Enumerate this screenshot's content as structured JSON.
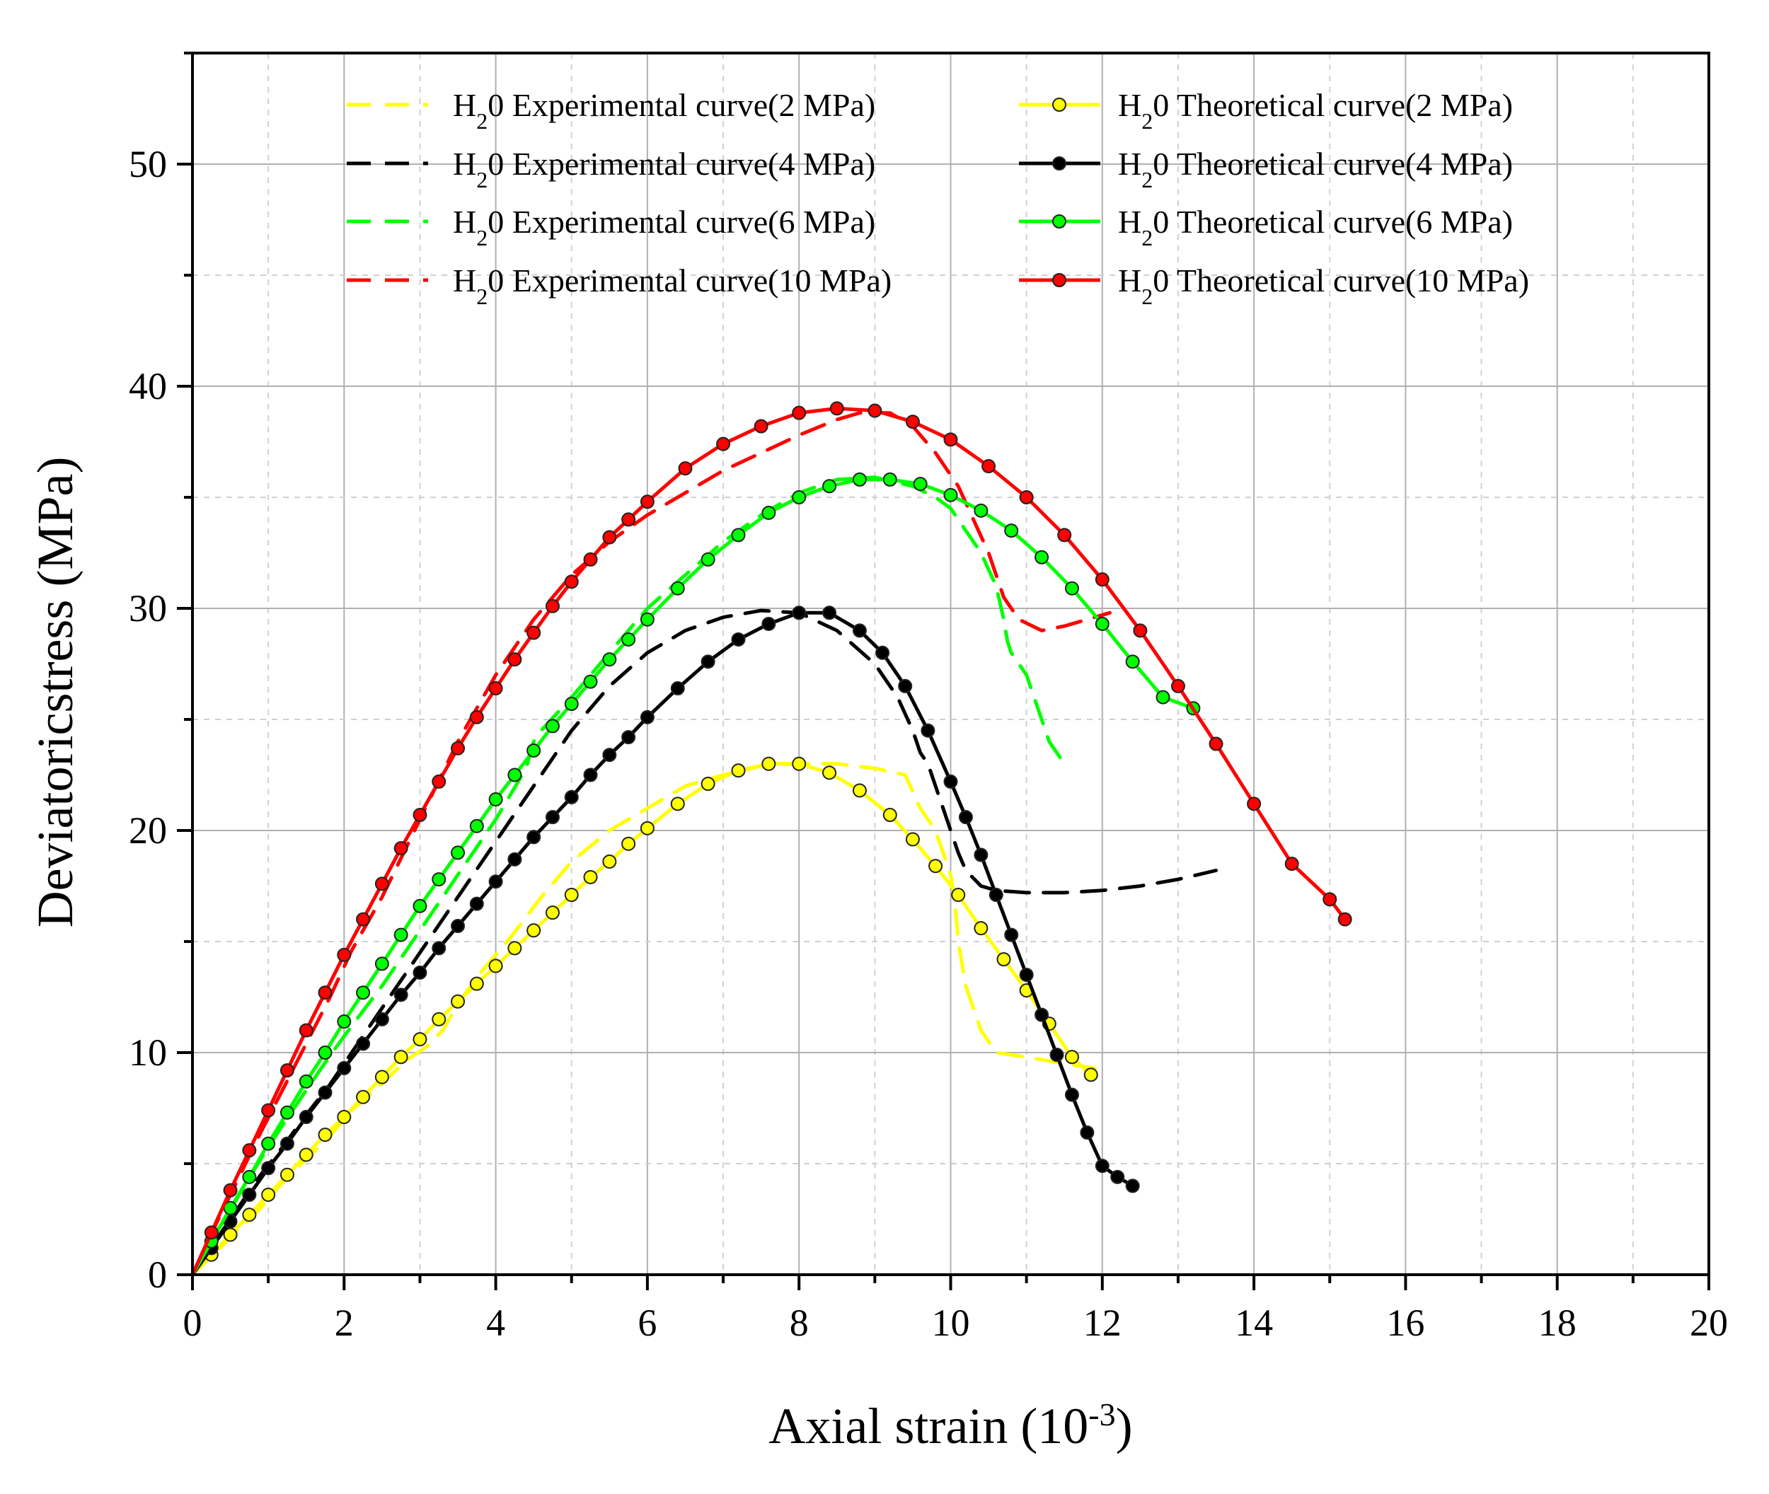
{
  "chart_data": {
    "type": "line",
    "title": "",
    "xlabel": "Axial strain (10",
    "xlabel_sup": "-3",
    "xlabel_end": ")",
    "ylabel": "Deviatoricstress (MPa)",
    "xlim": [
      0,
      20
    ],
    "ylim": [
      0,
      55
    ],
    "xticks": [
      0,
      2,
      4,
      6,
      8,
      10,
      12,
      14,
      16,
      18,
      20
    ],
    "yticks": [
      0,
      10,
      20,
      30,
      40,
      50
    ],
    "grid": true,
    "legend_position": "top",
    "series": [
      {
        "name": "H",
        "name_sub": "2",
        "name_rest": "0 Experimental curve(2 MPa)",
        "color": "#ffff00",
        "style": "dashed",
        "x": [
          0,
          0.3,
          0.6,
          0.9,
          1.2,
          1.5,
          1.8,
          2.1,
          2.5,
          2.8,
          3.1,
          3.3,
          3.5,
          3.8,
          4.2,
          4.6,
          5.0,
          5.5,
          6.0,
          6.5,
          7.0,
          7.5,
          8.0,
          8.5,
          9.0,
          9.4,
          9.6,
          9.8,
          9.9,
          10.0,
          10.05,
          10.1,
          10.2,
          10.3,
          10.4,
          10.6,
          11.0,
          11.5,
          11.9
        ],
        "y": [
          0,
          1.0,
          2.0,
          3.0,
          4.2,
          5.2,
          6.2,
          7.4,
          8.6,
          9.6,
          10.3,
          11.0,
          12.2,
          13.6,
          15.2,
          17.0,
          18.6,
          20.0,
          21.0,
          22.0,
          22.5,
          22.9,
          23.0,
          23.0,
          22.8,
          22.5,
          21.0,
          20.0,
          19.0,
          18.0,
          17.0,
          15.0,
          13.0,
          12.0,
          11.0,
          10.0,
          9.8,
          9.5,
          9.3
        ]
      },
      {
        "name": "H",
        "name_sub": "2",
        "name_rest": "0 Experimental curve(4 MPa)",
        "color": "#000000",
        "style": "dashed",
        "x": [
          0,
          0.3,
          0.6,
          0.9,
          1.2,
          1.5,
          1.8,
          2.0,
          2.3,
          2.6,
          3.0,
          3.5,
          4.0,
          4.5,
          5.0,
          5.5,
          6.0,
          6.5,
          7.0,
          7.5,
          8.0,
          8.5,
          9.0,
          9.3,
          9.5,
          9.6,
          9.7,
          9.8,
          10.0,
          10.1,
          10.2,
          10.4,
          10.6,
          11.0,
          11.5,
          12.0,
          12.5,
          13.0,
          13.5
        ],
        "y": [
          0,
          1.5,
          3.0,
          4.5,
          5.8,
          7.2,
          8.5,
          9.5,
          11.0,
          12.5,
          14.5,
          17.0,
          19.5,
          22.0,
          24.5,
          26.5,
          28.0,
          29.0,
          29.6,
          29.9,
          29.8,
          29.0,
          27.5,
          26.0,
          24.5,
          23.5,
          23.0,
          22.0,
          20.0,
          19.0,
          18.2,
          17.5,
          17.3,
          17.2,
          17.2,
          17.3,
          17.5,
          17.8,
          18.2
        ]
      },
      {
        "name": "H",
        "name_sub": "2",
        "name_rest": "0 Experimental curve(6 MPa)",
        "color": "#00ff00",
        "style": "dashed",
        "x": [
          0,
          0.3,
          0.6,
          0.9,
          1.2,
          1.5,
          1.8,
          2.1,
          2.5,
          3.0,
          3.5,
          4.0,
          4.4,
          4.5,
          4.6,
          5.0,
          5.5,
          6.0,
          6.5,
          7.0,
          7.5,
          8.0,
          8.5,
          9.0,
          9.5,
          9.8,
          10.0,
          10.2,
          10.4,
          10.6,
          10.7,
          10.75,
          10.8,
          10.9,
          11.0,
          11.1,
          11.2,
          11.3,
          11.5
        ],
        "y": [
          0,
          1.8,
          3.5,
          5.2,
          6.8,
          8.3,
          9.8,
          11.2,
          13.0,
          15.5,
          18.0,
          20.5,
          22.8,
          24.0,
          24.5,
          26.0,
          28.0,
          30.0,
          31.5,
          33.0,
          34.2,
          35.2,
          35.8,
          35.9,
          35.5,
          35.0,
          34.5,
          33.5,
          32.5,
          31.0,
          29.5,
          28.5,
          28.0,
          27.5,
          27.0,
          26.0,
          25.0,
          24.0,
          23.0
        ]
      },
      {
        "name": "H",
        "name_sub": "2",
        "name_rest": "0 Experimental curve(10 MPa)",
        "color": "#ff0000",
        "style": "dashed",
        "x": [
          0,
          0.3,
          0.6,
          0.9,
          1.2,
          1.5,
          1.8,
          2.1,
          2.5,
          3.0,
          3.5,
          4.0,
          4.5,
          5.0,
          5.5,
          6.0,
          6.5,
          7.0,
          7.5,
          8.0,
          8.5,
          8.8,
          9.2,
          9.5,
          9.8,
          10.1,
          10.3,
          10.5,
          10.6,
          10.7,
          10.8,
          10.9,
          11.2,
          11.5,
          11.8,
          12.1
        ],
        "y": [
          0,
          2.2,
          4.3,
          6.4,
          8.4,
          10.4,
          12.4,
          14.6,
          17.0,
          20.5,
          24.0,
          27.0,
          29.5,
          31.5,
          33.0,
          34.2,
          35.2,
          36.2,
          37.0,
          37.8,
          38.5,
          38.8,
          38.8,
          38.2,
          37.0,
          35.5,
          34.0,
          32.5,
          31.5,
          30.5,
          30.0,
          29.5,
          29.0,
          29.2,
          29.5,
          29.8
        ]
      },
      {
        "name": "H",
        "name_sub": "2",
        "name_rest": "0 Theoretical curve(2 MPa)",
        "color": "#ffff00",
        "style": "solid-markers",
        "peak_x": 7.6,
        "peak_y": 23.0,
        "end_x": 11.85,
        "end_y": 9.0,
        "x": [
          0,
          0.25,
          0.5,
          0.75,
          1.0,
          1.25,
          1.5,
          1.75,
          2.0,
          2.25,
          2.5,
          2.75,
          3.0,
          3.25,
          3.5,
          3.75,
          4.0,
          4.25,
          4.5,
          4.75,
          5.0,
          5.25,
          5.5,
          5.75,
          6.0,
          6.4,
          6.8,
          7.2,
          7.6,
          8.0,
          8.4,
          8.8,
          9.2,
          9.5,
          9.8,
          10.1,
          10.4,
          10.7,
          11.0,
          11.3,
          11.6,
          11.85
        ],
        "y": [
          0,
          0.9,
          1.8,
          2.7,
          3.6,
          4.5,
          5.4,
          6.3,
          7.1,
          8.0,
          8.9,
          9.8,
          10.6,
          11.5,
          12.3,
          13.1,
          13.9,
          14.7,
          15.5,
          16.3,
          17.1,
          17.9,
          18.6,
          19.4,
          20.1,
          21.2,
          22.1,
          22.7,
          23.0,
          23.0,
          22.6,
          21.8,
          20.7,
          19.6,
          18.4,
          17.1,
          15.6,
          14.2,
          12.8,
          11.3,
          9.8,
          9.0
        ]
      },
      {
        "name": "H",
        "name_sub": "2",
        "name_rest": "0 Theoretical curve(4 MPa)",
        "color": "#000000",
        "style": "solid-markers",
        "x": [
          0,
          0.25,
          0.5,
          0.75,
          1.0,
          1.25,
          1.5,
          1.75,
          2.0,
          2.25,
          2.5,
          2.75,
          3.0,
          3.25,
          3.5,
          3.75,
          4.0,
          4.25,
          4.5,
          4.75,
          5.0,
          5.25,
          5.5,
          5.75,
          6.0,
          6.4,
          6.8,
          7.2,
          7.6,
          8.0,
          8.4,
          8.8,
          9.1,
          9.4,
          9.7,
          10.0,
          10.2,
          10.4,
          10.6,
          10.8,
          11.0,
          11.2,
          11.4,
          11.6,
          11.8,
          12.0,
          12.2,
          12.4
        ],
        "y": [
          0,
          1.2,
          2.4,
          3.6,
          4.8,
          5.9,
          7.1,
          8.2,
          9.3,
          10.4,
          11.5,
          12.6,
          13.6,
          14.7,
          15.7,
          16.7,
          17.7,
          18.7,
          19.7,
          20.6,
          21.5,
          22.5,
          23.4,
          24.2,
          25.1,
          26.4,
          27.6,
          28.6,
          29.3,
          29.8,
          29.8,
          29.0,
          28.0,
          26.5,
          24.5,
          22.2,
          20.6,
          18.9,
          17.1,
          15.3,
          13.5,
          11.7,
          9.9,
          8.1,
          6.4,
          4.9,
          4.4,
          4.0
        ]
      },
      {
        "name": "H",
        "name_sub": "2",
        "name_rest": "0 Theoretical curve(6 MPa)",
        "color": "#00ff00",
        "style": "solid-markers",
        "x": [
          0,
          0.25,
          0.5,
          0.75,
          1.0,
          1.25,
          1.5,
          1.75,
          2.0,
          2.25,
          2.5,
          2.75,
          3.0,
          3.25,
          3.5,
          3.75,
          4.0,
          4.25,
          4.5,
          4.75,
          5.0,
          5.25,
          5.5,
          5.75,
          6.0,
          6.4,
          6.8,
          7.2,
          7.6,
          8.0,
          8.4,
          8.8,
          9.2,
          9.6,
          10.0,
          10.4,
          10.8,
          11.2,
          11.6,
          12.0,
          12.4,
          12.8,
          13.2
        ],
        "y": [
          0,
          1.5,
          3.0,
          4.4,
          5.9,
          7.3,
          8.7,
          10.0,
          11.4,
          12.7,
          14.0,
          15.3,
          16.6,
          17.8,
          19.0,
          20.2,
          21.4,
          22.5,
          23.6,
          24.7,
          25.7,
          26.7,
          27.7,
          28.6,
          29.5,
          30.9,
          32.2,
          33.3,
          34.3,
          35.0,
          35.5,
          35.8,
          35.8,
          35.6,
          35.1,
          34.4,
          33.5,
          32.3,
          30.9,
          29.3,
          27.6,
          26.0,
          25.5
        ]
      },
      {
        "name": "H",
        "name_sub": "2",
        "name_rest": "0 Theoretical curve(10 MPa)",
        "color": "#ff0000",
        "style": "solid-markers",
        "x": [
          0,
          0.25,
          0.5,
          0.75,
          1.0,
          1.25,
          1.5,
          1.75,
          2.0,
          2.25,
          2.5,
          2.75,
          3.0,
          3.25,
          3.5,
          3.75,
          4.0,
          4.25,
          4.5,
          4.75,
          5.0,
          5.25,
          5.5,
          5.75,
          6.0,
          6.5,
          7.0,
          7.5,
          8.0,
          8.5,
          9.0,
          9.5,
          10.0,
          10.5,
          11.0,
          11.5,
          12.0,
          12.5,
          13.0,
          13.5,
          14.0,
          14.5,
          15.0,
          15.2
        ],
        "y": [
          0,
          1.9,
          3.8,
          5.6,
          7.4,
          9.2,
          11.0,
          12.7,
          14.4,
          16.0,
          17.6,
          19.2,
          20.7,
          22.2,
          23.7,
          25.1,
          26.4,
          27.7,
          28.9,
          30.1,
          31.2,
          32.2,
          33.2,
          34.0,
          34.8,
          36.3,
          37.4,
          38.2,
          38.8,
          39.0,
          38.9,
          38.4,
          37.6,
          36.4,
          35.0,
          33.3,
          31.3,
          29.0,
          26.5,
          23.9,
          21.2,
          18.5,
          16.9,
          16.0
        ]
      }
    ]
  }
}
